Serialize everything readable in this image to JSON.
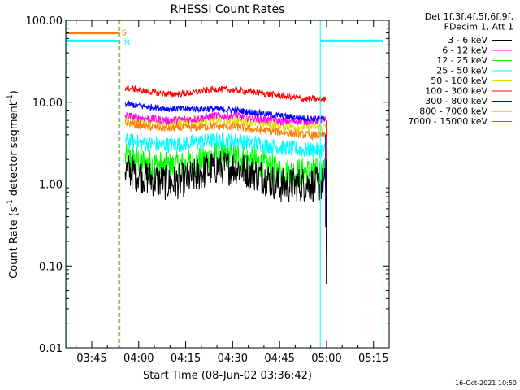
{
  "chart_data": {
    "type": "line",
    "title": "RHESSI Count Rates",
    "xlabel": "Start Time (08-Jun-02 03:36:42)",
    "ylabel_main": "Count Rate (s",
    "ylabel_sup": "-1",
    "ylabel_mid": " detector segment",
    "ylabel_sup2": "-1",
    "ylabel_end": ")",
    "y_scale": "log",
    "ylim": [
      0.01,
      100
    ],
    "xlim": [
      "03:36:42",
      "05:20:00"
    ],
    "x_ticks": [
      {
        "t": "03:45",
        "label": "03:45"
      },
      {
        "t": "04:00",
        "label": "04:00"
      },
      {
        "t": "04:15",
        "label": "04:15"
      },
      {
        "t": "04:30",
        "label": "04:30"
      },
      {
        "t": "04:45",
        "label": "04:45"
      },
      {
        "t": "05:00",
        "label": "05:00"
      },
      {
        "t": "05:15",
        "label": "05:15"
      }
    ],
    "y_ticks": [
      {
        "v": 100,
        "label": "100.00"
      },
      {
        "v": 10,
        "label": "10.00"
      },
      {
        "v": 1,
        "label": "1.00"
      },
      {
        "v": 0.1,
        "label": "0.10"
      },
      {
        "v": 0.01,
        "label": "0.01"
      }
    ],
    "legend_header": [
      "Det 1f,3f,4f,5f,6f,9f,",
      "FDecim 1, Att 1"
    ],
    "legend_placement": "top-right, outside plot",
    "series": [
      {
        "name": "3 - 6 keV",
        "color": "#000000",
        "level": [
          1.5,
          1.2,
          1.0,
          1.2,
          1.6,
          1.6,
          1.3,
          0.95,
          1.0,
          1.0
        ],
        "noise": 0.22
      },
      {
        "name": "6 - 12 keV",
        "color": "#ff00ff",
        "level": [
          6.8,
          6.3,
          6.0,
          6.2,
          6.8,
          6.8,
          6.3,
          5.8,
          5.9,
          6.0
        ],
        "noise": 0.05
      },
      {
        "name": "12 - 25 keV",
        "color": "#00ff00",
        "level": [
          2.1,
          1.8,
          1.6,
          1.8,
          2.2,
          2.2,
          1.8,
          1.4,
          1.4,
          1.4
        ],
        "noise": 0.18
      },
      {
        "name": "25 - 50 keV",
        "color": "#00ffff",
        "level": [
          3.4,
          3.1,
          3.0,
          3.2,
          3.4,
          3.4,
          3.1,
          2.8,
          2.6,
          2.6
        ],
        "noise": 0.1
      },
      {
        "name": "50 - 100 keV",
        "color": "#e0e000",
        "level": [
          6.3,
          5.9,
          5.6,
          5.9,
          6.0,
          6.0,
          5.6,
          5.2,
          5.0,
          5.0
        ],
        "noise": 0.06
      },
      {
        "name": "100 - 300 keV",
        "color": "#ff0000",
        "level": [
          15.0,
          13.5,
          12.5,
          13.0,
          14.5,
          14.0,
          13.0,
          12.0,
          11.0,
          10.8
        ],
        "noise": 0.04
      },
      {
        "name": "300 - 800 keV",
        "color": "#0000ff",
        "level": [
          9.5,
          8.8,
          8.3,
          8.3,
          8.3,
          8.0,
          7.4,
          6.8,
          6.4,
          6.2
        ],
        "noise": 0.04
      },
      {
        "name": "800 - 7000 keV",
        "color": "#ff8000",
        "level": [
          5.6,
          5.0,
          4.8,
          4.9,
          5.1,
          5.0,
          4.6,
          4.3,
          4.0,
          3.9
        ],
        "noise": 0.05
      },
      {
        "name": "7000 - 15000 keV",
        "color": "#808000",
        "level": [],
        "noise": 0
      }
    ],
    "data_window": {
      "start": "03:55:40",
      "end": "04:59:40"
    },
    "attenuator_flag": {
      "label": "S",
      "color": "#ff8000",
      "value": 70,
      "start": "03:36:42",
      "end": "03:54:00"
    },
    "night_flag": {
      "label": "N",
      "color": "#00ffff",
      "value": 56,
      "start": "03:36:42",
      "end": "03:54:00",
      "start2": "04:58:00",
      "end2": "05:18:00"
    },
    "event_lines": [
      {
        "t": "03:37:00",
        "color": "#00ffff",
        "style": "solid"
      },
      {
        "t": "03:53:30",
        "color": "#00ffff",
        "style": "dashed"
      },
      {
        "t": "03:54:00",
        "color": "#ff8000",
        "style": "dashed"
      },
      {
        "t": "04:58:00",
        "color": "#00ffff",
        "style": "solid"
      },
      {
        "t": "05:18:00",
        "color": "#00ffff",
        "style": "dashed"
      }
    ],
    "grid": false
  },
  "footer_timestamp": "16-Oct-2021 10:50"
}
